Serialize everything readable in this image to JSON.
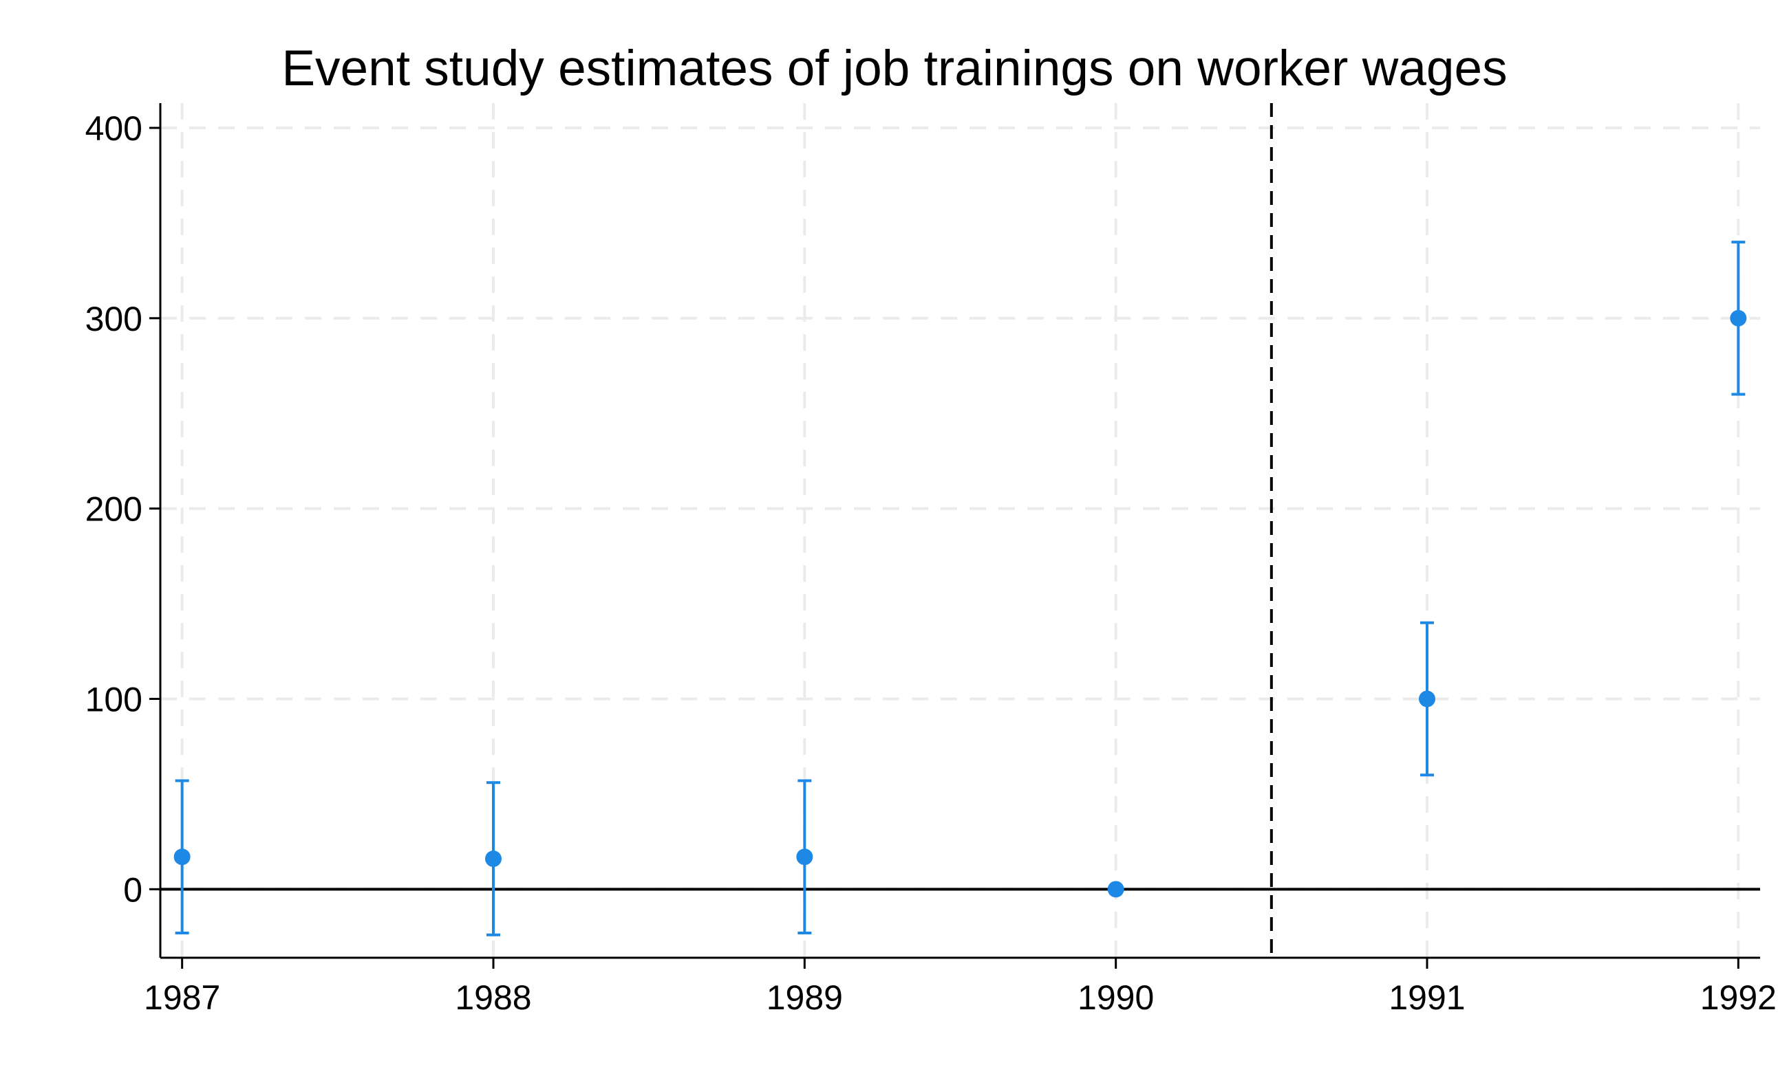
{
  "chart_data": {
    "type": "scatter",
    "title": "Event study estimates of job trainings on worker wages",
    "xlabel": "",
    "ylabel": "",
    "x": [
      1987,
      1988,
      1989,
      1990,
      1991,
      1992
    ],
    "series": [
      {
        "values": [
          17,
          16,
          17,
          0,
          100,
          300
        ],
        "ci_low": [
          -23,
          -24,
          -23,
          0,
          60,
          260
        ],
        "ci_high": [
          57,
          56,
          57,
          0,
          140,
          340
        ]
      }
    ],
    "x_ticks": [
      1987,
      1988,
      1989,
      1990,
      1991,
      1992
    ],
    "y_ticks": [
      0,
      100,
      200,
      300,
      400
    ],
    "xlim": [
      1986.93,
      1992.07
    ],
    "ylim": [
      -36,
      413
    ],
    "reference_lines": {
      "horizontal_y": 0,
      "vertical_x": 1990.5
    },
    "grid": true,
    "legend": "none",
    "colors": {
      "points": "#1E88E5",
      "grid": "#EBEBEB",
      "axis": "#000000"
    }
  }
}
